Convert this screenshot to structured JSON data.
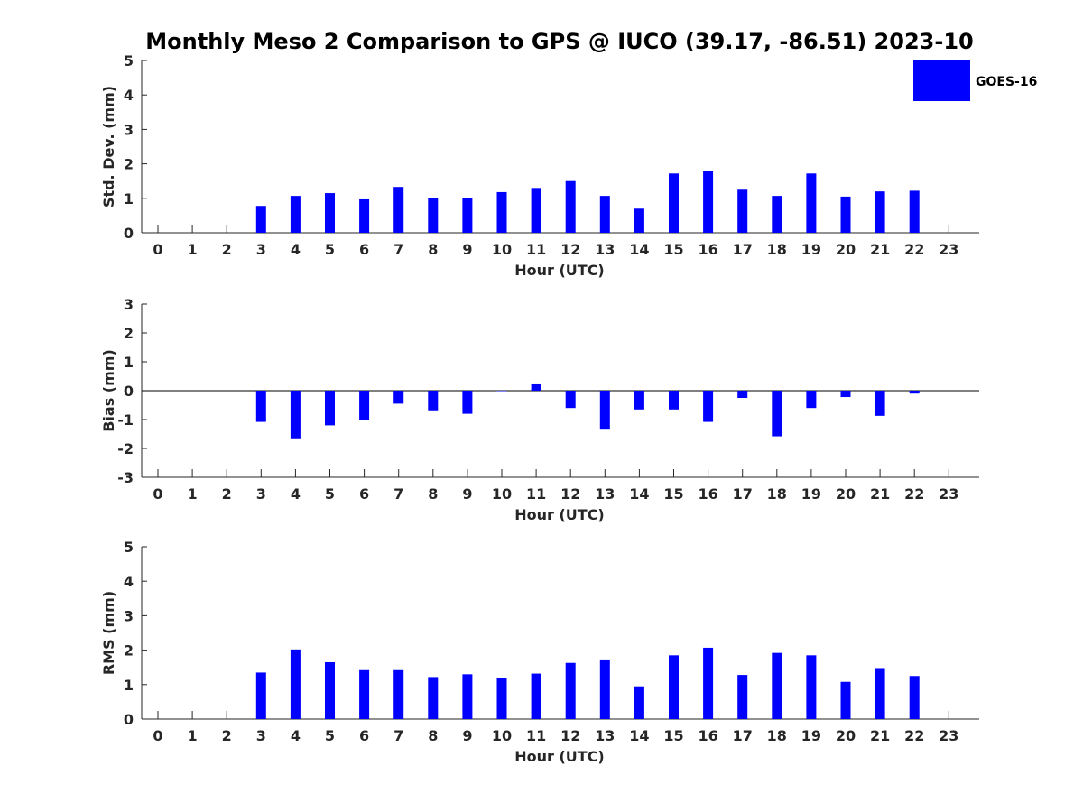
{
  "chart_data": {
    "title": "Monthly Meso 2 Comparison to GPS @ IUCO (39.17, -86.51) 2023-10",
    "legend": {
      "label": "GOES-16",
      "placement": "top-right"
    },
    "bar_color": "#0000ff",
    "panels": [
      {
        "type": "bar",
        "ylabel": "Std. Dev. (mm)",
        "xlabel": "Hour (UTC)",
        "ylim": [
          0,
          5
        ],
        "yticks": [
          0,
          1,
          2,
          3,
          4,
          5
        ],
        "zero_line": false,
        "categories": [
          "0",
          "1",
          "2",
          "3",
          "4",
          "5",
          "6",
          "7",
          "8",
          "9",
          "10",
          "11",
          "12",
          "13",
          "14",
          "15",
          "16",
          "17",
          "18",
          "19",
          "20",
          "21",
          "22",
          "23"
        ],
        "series": [
          {
            "name": "GOES-16",
            "values": [
              null,
              null,
              null,
              0.78,
              1.07,
              1.15,
              0.97,
              1.33,
              1.0,
              1.02,
              1.18,
              1.3,
              1.5,
              1.07,
              0.7,
              1.72,
              1.78,
              1.25,
              1.07,
              1.72,
              1.05,
              1.2,
              1.22,
              null
            ]
          }
        ]
      },
      {
        "type": "bar",
        "ylabel": "Bias (mm)",
        "xlabel": "Hour (UTC)",
        "ylim": [
          -3,
          3
        ],
        "yticks": [
          -3,
          -2,
          -1,
          0,
          1,
          2,
          3
        ],
        "zero_line": true,
        "categories": [
          "0",
          "1",
          "2",
          "3",
          "4",
          "5",
          "6",
          "7",
          "8",
          "9",
          "10",
          "11",
          "12",
          "13",
          "14",
          "15",
          "16",
          "17",
          "18",
          "19",
          "20",
          "21",
          "22",
          "23"
        ],
        "series": [
          {
            "name": "GOES-16",
            "values": [
              null,
              null,
              null,
              -1.08,
              -1.68,
              -1.2,
              -1.02,
              -0.45,
              -0.68,
              -0.8,
              0.0,
              0.22,
              -0.6,
              -1.35,
              -0.65,
              -0.65,
              -1.08,
              -0.25,
              -1.58,
              -0.6,
              -0.22,
              -0.87,
              -0.1,
              null
            ]
          }
        ]
      },
      {
        "type": "bar",
        "ylabel": "RMS (mm)",
        "xlabel": "Hour (UTC)",
        "ylim": [
          0,
          5
        ],
        "yticks": [
          0,
          1,
          2,
          3,
          4,
          5
        ],
        "zero_line": false,
        "categories": [
          "0",
          "1",
          "2",
          "3",
          "4",
          "5",
          "6",
          "7",
          "8",
          "9",
          "10",
          "11",
          "12",
          "13",
          "14",
          "15",
          "16",
          "17",
          "18",
          "19",
          "20",
          "21",
          "22",
          "23"
        ],
        "series": [
          {
            "name": "GOES-16",
            "values": [
              null,
              null,
              null,
              1.35,
              2.02,
              1.65,
              1.42,
              1.42,
              1.22,
              1.3,
              1.2,
              1.32,
              1.63,
              1.73,
              0.95,
              1.85,
              2.07,
              1.28,
              1.92,
              1.85,
              1.08,
              1.48,
              1.25,
              null
            ]
          }
        ]
      }
    ]
  }
}
